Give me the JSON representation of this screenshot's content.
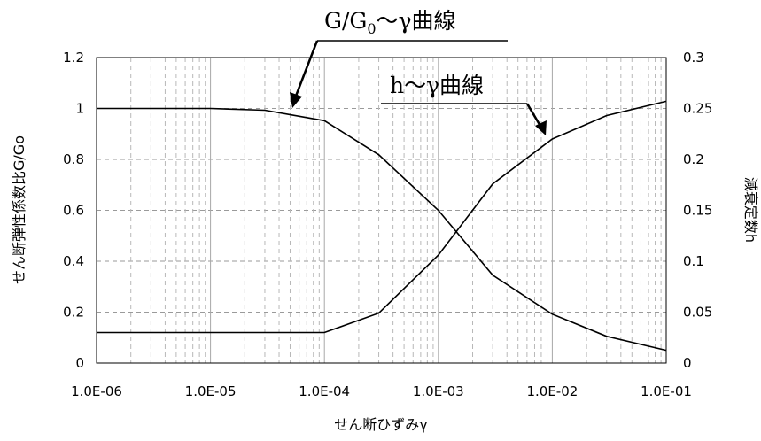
{
  "chart_data": {
    "type": "line",
    "xscale": "log",
    "xlim": [
      1e-06,
      0.1
    ],
    "x_ticks": [
      "1.0E-06",
      "1.0E-05",
      "1.0E-04",
      "1.0E-03",
      "1.0E-02",
      "1.0E-01"
    ],
    "y_left_lim": [
      0,
      1.2
    ],
    "y_left_ticks": [
      "0",
      "0.2",
      "0.4",
      "0.6",
      "0.8",
      "1",
      "1.2"
    ],
    "y_right_lim": [
      0,
      0.3
    ],
    "y_right_ticks": [
      "0",
      "0.05",
      "0.1",
      "0.15",
      "0.2",
      "0.25",
      "0.3"
    ],
    "xlabel": "せん断ひずみγ",
    "ylabel_left": "せん断弾性係数比G/Go",
    "ylabel_right": "減衰定数h",
    "grid": true,
    "series": [
      {
        "name": "G/G0～γ曲線",
        "axis": "left",
        "x": [
          1e-06,
          1e-05,
          3e-05,
          0.0001,
          0.0003,
          0.001,
          0.003,
          0.01,
          0.03,
          0.1
        ],
        "y": [
          1.0,
          1.0,
          0.993,
          0.952,
          0.818,
          0.6,
          0.345,
          0.192,
          0.105,
          0.05
        ]
      },
      {
        "name": "h～γ曲線",
        "axis": "right",
        "x": [
          1e-06,
          1e-05,
          0.0001,
          0.0003,
          0.001,
          0.003,
          0.01,
          0.03,
          0.1
        ],
        "y": [
          0.03,
          0.03,
          0.03,
          0.049,
          0.106,
          0.176,
          0.22,
          0.243,
          0.257
        ]
      }
    ],
    "annotations": [
      {
        "text_main": "G/G",
        "text_sub": "0",
        "text_tail": "～γ曲線"
      },
      {
        "text_main": "h～γ曲線"
      }
    ]
  }
}
